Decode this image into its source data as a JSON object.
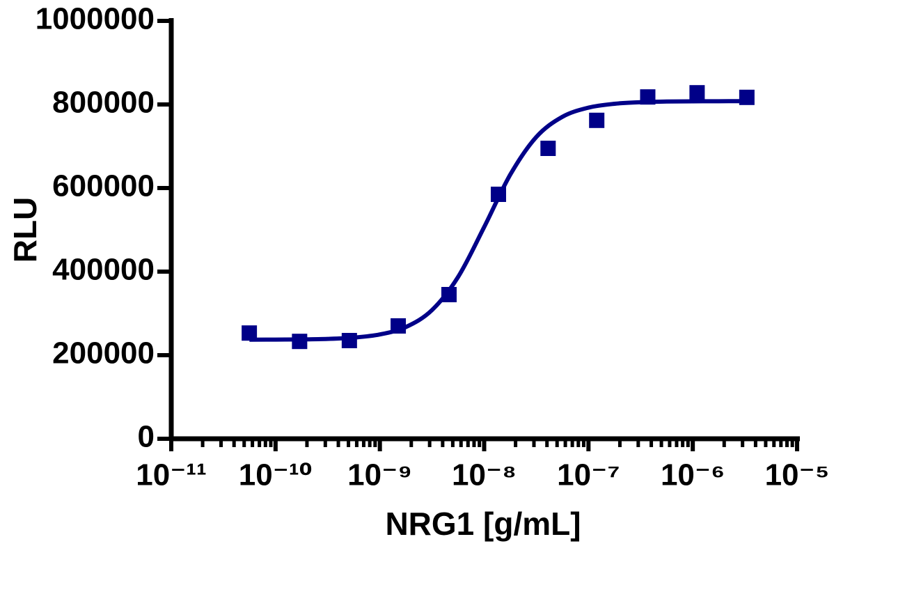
{
  "chart_data": {
    "type": "scatter",
    "x_label": "NRG1 [g/mL]",
    "y_label": "RLU",
    "xscale": "log",
    "xlim": [
      1e-11,
      1e-05
    ],
    "xticks": [
      {
        "value": 1e-11,
        "label": "10⁻¹¹"
      },
      {
        "value": 1e-10,
        "label": "10⁻¹⁰"
      },
      {
        "value": 1e-09,
        "label": "10⁻⁹"
      },
      {
        "value": 1e-08,
        "label": "10⁻⁸"
      },
      {
        "value": 1e-07,
        "label": "10⁻⁷"
      },
      {
        "value": 1e-06,
        "label": "10⁻⁶"
      },
      {
        "value": 1e-05,
        "label": "10⁻⁵"
      }
    ],
    "xminorticks": [
      2e-11,
      3e-11,
      4e-11,
      5e-11,
      6e-11,
      7e-11,
      8e-11,
      9e-11,
      2e-10,
      3e-10,
      4e-10,
      5e-10,
      6e-10,
      7e-10,
      8e-10,
      9e-10,
      2e-09,
      3e-09,
      4e-09,
      5e-09,
      6e-09,
      7e-09,
      8e-09,
      9e-09,
      2e-08,
      3e-08,
      4e-08,
      5e-08,
      6e-08,
      7e-08,
      8e-08,
      9e-08,
      2e-07,
      3e-07,
      4e-07,
      5e-07,
      6e-07,
      7e-07,
      8e-07,
      9e-07,
      2e-06,
      3e-06,
      4e-06,
      5e-06,
      6e-06,
      7e-06,
      8e-06,
      9e-06
    ],
    "ylim": [
      0,
      1000000
    ],
    "yticks": [
      0,
      200000,
      400000,
      600000,
      800000,
      1000000
    ],
    "series": [
      {
        "style": "markers",
        "color": "#000088",
        "x": [
          5.6e-11,
          1.7e-10,
          5.1e-10,
          1.5e-09,
          4.6e-09,
          1.37e-08,
          4.1e-08,
          1.2e-07,
          3.7e-07,
          1.1e-06,
          3.3e-06
        ],
        "values": [
          253000,
          233000,
          235000,
          270000,
          345000,
          585000,
          695000,
          762000,
          818000,
          828000,
          817000
        ]
      },
      {
        "style": "line",
        "color": "#000088",
        "x": [
          5.62e-11,
          1e-10,
          1.78e-10,
          3.16e-10,
          5.62e-10,
          1e-09,
          1.78e-09,
          3.16e-09,
          5.62e-09,
          1e-08,
          1.78e-08,
          3.16e-08,
          5.62e-08,
          1e-07,
          1.78e-07,
          3.16e-07,
          5.62e-07,
          1e-06,
          1.78e-06,
          3.16e-06
        ],
        "values": [
          237100,
          237300,
          237800,
          239000,
          242100,
          249600,
          267500,
          307900,
          387100,
          506700,
          632200,
          722100,
          770400,
          792400,
          801700,
          805500,
          807000,
          807600,
          807800,
          807900
        ]
      }
    ]
  }
}
